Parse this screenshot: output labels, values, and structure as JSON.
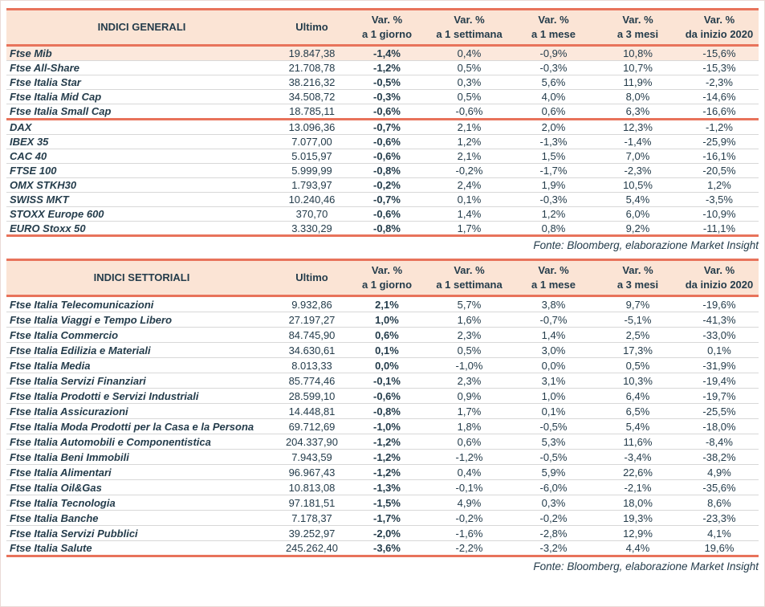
{
  "colors": {
    "accent": "#E8735B",
    "header_bg": "#FBE4D5",
    "highlight_bg": "#FCE8DC",
    "text": "#243C4B",
    "divider": "#D8D8D8"
  },
  "source_note": "Fonte: Bloomberg, elaborazione Market Insight",
  "header": {
    "ultimo": "Ultimo",
    "vars": [
      {
        "l1": "Var. %",
        "l2": "a 1 giorno"
      },
      {
        "l1": "Var. %",
        "l2": "a 1 settimana"
      },
      {
        "l1": "Var. %",
        "l2": "a 1 mese"
      },
      {
        "l1": "Var. %",
        "l2": "a 3 mesi"
      },
      {
        "l1": "Var. %",
        "l2": "da inizio 2020"
      }
    ]
  },
  "tables": [
    {
      "title": "INDICI GENERALI",
      "groups": [
        {
          "rows": [
            {
              "name": "Ftse Mib",
              "ultimo": "19.847,38",
              "d1": "-1,4%",
              "w1": "0,4%",
              "m1": "-0,9%",
              "m3": "10,8%",
              "ytd": "-15,6%",
              "highlight": true
            },
            {
              "name": "Ftse All-Share",
              "ultimo": "21.708,78",
              "d1": "-1,2%",
              "w1": "0,5%",
              "m1": "-0,3%",
              "m3": "10,7%",
              "ytd": "-15,3%"
            },
            {
              "name": "Ftse Italia Star",
              "ultimo": "38.216,32",
              "d1": "-0,5%",
              "w1": "0,3%",
              "m1": "5,6%",
              "m3": "11,9%",
              "ytd": "-2,3%"
            },
            {
              "name": "Ftse Italia Mid Cap",
              "ultimo": "34.508,72",
              "d1": "-0,3%",
              "w1": "0,5%",
              "m1": "4,0%",
              "m3": "8,0%",
              "ytd": "-14,6%"
            },
            {
              "name": "Ftse Italia Small Cap",
              "ultimo": "18.785,11",
              "d1": "-0,6%",
              "w1": "-0,6%",
              "m1": "0,6%",
              "m3": "6,3%",
              "ytd": "-16,6%"
            }
          ]
        },
        {
          "rows": [
            {
              "name": "DAX",
              "ultimo": "13.096,36",
              "d1": "-0,7%",
              "w1": "2,1%",
              "m1": "2,0%",
              "m3": "12,3%",
              "ytd": "-1,2%"
            },
            {
              "name": "IBEX 35",
              "ultimo": "7.077,00",
              "d1": "-0,6%",
              "w1": "1,2%",
              "m1": "-1,3%",
              "m3": "-1,4%",
              "ytd": "-25,9%"
            },
            {
              "name": "CAC 40",
              "ultimo": "5.015,97",
              "d1": "-0,6%",
              "w1": "2,1%",
              "m1": "1,5%",
              "m3": "7,0%",
              "ytd": "-16,1%"
            },
            {
              "name": "FTSE 100",
              "ultimo": "5.999,99",
              "d1": "-0,8%",
              "w1": "-0,2%",
              "m1": "-1,7%",
              "m3": "-2,3%",
              "ytd": "-20,5%"
            },
            {
              "name": "OMX STKH30",
              "ultimo": "1.793,97",
              "d1": "-0,2%",
              "w1": "2,4%",
              "m1": "1,9%",
              "m3": "10,5%",
              "ytd": "1,2%"
            },
            {
              "name": "SWISS MKT",
              "ultimo": "10.240,46",
              "d1": "-0,7%",
              "w1": "0,1%",
              "m1": "-0,3%",
              "m3": "5,4%",
              "ytd": "-3,5%"
            },
            {
              "name": "STOXX Europe 600",
              "ultimo": "370,70",
              "d1": "-0,6%",
              "w1": "1,4%",
              "m1": "1,2%",
              "m3": "6,0%",
              "ytd": "-10,9%"
            },
            {
              "name": "EURO Stoxx 50",
              "ultimo": "3.330,29",
              "d1": "-0,8%",
              "w1": "1,7%",
              "m1": "0,8%",
              "m3": "9,2%",
              "ytd": "-11,1%"
            }
          ]
        }
      ]
    },
    {
      "title": "INDICI SETTORIALI",
      "groups": [
        {
          "rows": [
            {
              "name": "Ftse Italia Telecomunicazioni",
              "ultimo": "9.932,86",
              "d1": "2,1%",
              "w1": "5,7%",
              "m1": "3,8%",
              "m3": "9,7%",
              "ytd": "-19,6%"
            },
            {
              "name": "Ftse Italia Viaggi e Tempo Libero",
              "ultimo": "27.197,27",
              "d1": "1,0%",
              "w1": "1,6%",
              "m1": "-0,7%",
              "m3": "-5,1%",
              "ytd": "-41,3%"
            },
            {
              "name": "Ftse Italia Commercio",
              "ultimo": "84.745,90",
              "d1": "0,6%",
              "w1": "2,3%",
              "m1": "1,4%",
              "m3": "2,5%",
              "ytd": "-33,0%"
            },
            {
              "name": "Ftse Italia Edilizia e Materiali",
              "ultimo": "34.630,61",
              "d1": "0,1%",
              "w1": "0,5%",
              "m1": "3,0%",
              "m3": "17,3%",
              "ytd": "0,1%"
            },
            {
              "name": "Ftse Italia Media",
              "ultimo": "8.013,33",
              "d1": "0,0%",
              "w1": "-1,0%",
              "m1": "0,0%",
              "m3": "0,5%",
              "ytd": "-31,9%"
            },
            {
              "name": "Ftse Italia Servizi Finanziari",
              "ultimo": "85.774,46",
              "d1": "-0,1%",
              "w1": "2,3%",
              "m1": "3,1%",
              "m3": "10,3%",
              "ytd": "-19,4%"
            },
            {
              "name": "Ftse Italia Prodotti e Servizi Industriali",
              "ultimo": "28.599,10",
              "d1": "-0,6%",
              "w1": "0,9%",
              "m1": "1,0%",
              "m3": "6,4%",
              "ytd": "-19,7%"
            },
            {
              "name": "Ftse Italia Assicurazioni",
              "ultimo": "14.448,81",
              "d1": "-0,8%",
              "w1": "1,7%",
              "m1": "0,1%",
              "m3": "6,5%",
              "ytd": "-25,5%"
            },
            {
              "name": "Ftse Italia Moda Prodotti per la Casa e la Persona",
              "ultimo": "69.712,69",
              "d1": "-1,0%",
              "w1": "1,8%",
              "m1": "-0,5%",
              "m3": "5,4%",
              "ytd": "-18,0%"
            },
            {
              "name": "Ftse Italia Automobili e Componentistica",
              "ultimo": "204.337,90",
              "d1": "-1,2%",
              "w1": "0,6%",
              "m1": "5,3%",
              "m3": "11,6%",
              "ytd": "-8,4%"
            },
            {
              "name": "Ftse Italia Beni Immobili",
              "ultimo": "7.943,59",
              "d1": "-1,2%",
              "w1": "-1,2%",
              "m1": "-0,5%",
              "m3": "-3,4%",
              "ytd": "-38,2%"
            },
            {
              "name": "Ftse Italia Alimentari",
              "ultimo": "96.967,43",
              "d1": "-1,2%",
              "w1": "0,4%",
              "m1": "5,9%",
              "m3": "22,6%",
              "ytd": "4,9%"
            },
            {
              "name": "Ftse Italia Oil&Gas",
              "ultimo": "10.813,08",
              "d1": "-1,3%",
              "w1": "-0,1%",
              "m1": "-6,0%",
              "m3": "-2,1%",
              "ytd": "-35,6%"
            },
            {
              "name": "Ftse Italia Tecnologia",
              "ultimo": "97.181,51",
              "d1": "-1,5%",
              "w1": "4,9%",
              "m1": "0,3%",
              "m3": "18,0%",
              "ytd": "8,6%"
            },
            {
              "name": "Ftse Italia Banche",
              "ultimo": "7.178,37",
              "d1": "-1,7%",
              "w1": "-0,2%",
              "m1": "-0,2%",
              "m3": "19,3%",
              "ytd": "-23,3%"
            },
            {
              "name": "Ftse Italia Servizi Pubblici",
              "ultimo": "39.252,97",
              "d1": "-2,0%",
              "w1": "-1,6%",
              "m1": "-2,8%",
              "m3": "12,9%",
              "ytd": "4,1%"
            },
            {
              "name": "Ftse Italia Salute",
              "ultimo": "245.262,40",
              "d1": "-3,6%",
              "w1": "-2,2%",
              "m1": "-3,2%",
              "m3": "4,4%",
              "ytd": "19,6%"
            }
          ]
        }
      ]
    }
  ]
}
